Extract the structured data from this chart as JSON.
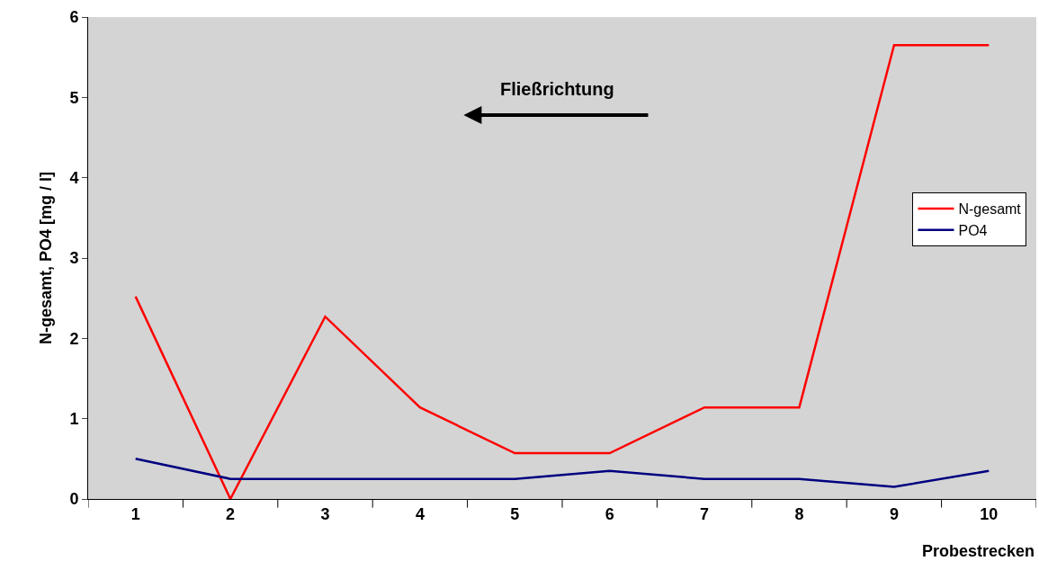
{
  "chart_data": {
    "type": "line",
    "xlabel": "Probestrecken",
    "ylabel": "N-gesamt, PO4 [mg / l]",
    "categories": [
      "1",
      "2",
      "3",
      "4",
      "5",
      "6",
      "7",
      "8",
      "9",
      "10"
    ],
    "series": [
      {
        "name": "N-gesamt",
        "color": "#ff0000",
        "values": [
          2.52,
          0,
          2.27,
          1.14,
          0.57,
          0.57,
          1.14,
          1.14,
          5.65,
          5.65
        ]
      },
      {
        "name": "PO4",
        "color": "#000080",
        "values": [
          0.5,
          0.25,
          0.25,
          0.25,
          0.25,
          0.35,
          0.25,
          0.25,
          0.15,
          0.35
        ]
      }
    ],
    "ylim": [
      0,
      6
    ],
    "yticks": [
      0,
      1,
      2,
      3,
      4,
      5,
      6
    ],
    "grid": false,
    "legend": "right",
    "marker": "none",
    "line_style": "solid",
    "annotations": [
      "Fließrichtung"
    ]
  }
}
